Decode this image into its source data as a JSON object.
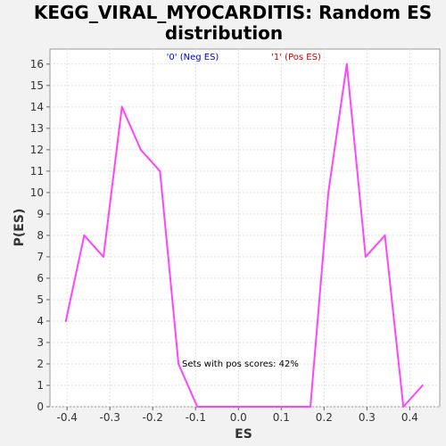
{
  "chart_data": {
    "type": "line",
    "title_line1": "KEGG_VIRAL_MYOCARDITIS: Random ES",
    "title_line2": "distribution",
    "xlabel": "ES",
    "ylabel": "P(ES)",
    "xlim": [
      -0.44,
      0.47
    ],
    "ylim": [
      0,
      16.7
    ],
    "x_ticks": [
      "-0.4",
      "-0.3",
      "-0.2",
      "-0.1",
      "0.0",
      "0.1",
      "0.2",
      "0.3",
      "0.4"
    ],
    "y_ticks": [
      "0",
      "1",
      "2",
      "3",
      "4",
      "5",
      "6",
      "7",
      "8",
      "9",
      "10",
      "11",
      "12",
      "13",
      "14",
      "15",
      "16"
    ],
    "grid": true,
    "legend": {
      "placement": "top",
      "items": [
        {
          "label": "'0' (Neg ES)",
          "color": "#0000cc"
        },
        {
          "label": "'1' (Pos ES)",
          "color": "#cc0000"
        }
      ]
    },
    "annotation": "Sets with pos scores: 42%",
    "series": [
      {
        "color": "#ff44ff",
        "x": [
          -0.403,
          -0.36,
          -0.315,
          -0.272,
          -0.228,
          -0.183,
          -0.14,
          -0.096,
          -0.052,
          -0.008,
          0.036,
          0.08,
          0.124,
          0.168,
          0.21,
          0.253,
          0.297,
          0.342,
          0.385,
          0.43
        ],
        "y": [
          4,
          8,
          7,
          14,
          12,
          11,
          2,
          0,
          0,
          0,
          0,
          0,
          0,
          0,
          10,
          16,
          7,
          8,
          0,
          1
        ]
      }
    ]
  }
}
